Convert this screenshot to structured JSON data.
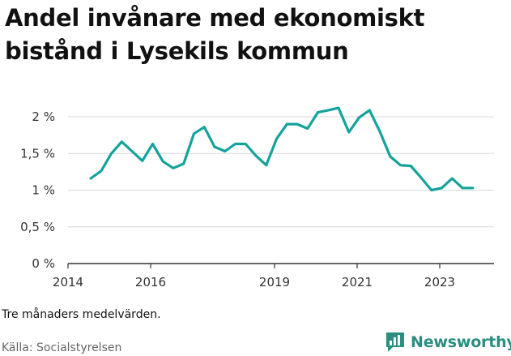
{
  "title": "Andel invånare med ekonomiskt bistånd i Lysekils kommun",
  "note": "Tre månaders medelvärden.",
  "source": "Källa: Socialstyrelsen",
  "brand": "Newsworthy",
  "colors": {
    "line": "#14a39b",
    "brand": "#2a8e80",
    "grid": "#d9d9d9",
    "axis": "#333333"
  },
  "chart_data": {
    "type": "line",
    "title": "Andel invånare med ekonomiskt bistånd i Lysekils kommun",
    "xlabel": "",
    "ylabel": "",
    "xlim": [
      2014.0,
      2025.2
    ],
    "ylim": [
      0,
      2.2
    ],
    "x_ticks": [
      {
        "value": 2014,
        "label": "2014"
      },
      {
        "value": 2016,
        "label": "2016"
      },
      {
        "value": 2019,
        "label": "2019"
      },
      {
        "value": 2021,
        "label": "2021"
      },
      {
        "value": 2023,
        "label": "2023"
      }
    ],
    "y_ticks": [
      {
        "value": 0,
        "label": "0 %"
      },
      {
        "value": 0.5,
        "label": "0,5 %"
      },
      {
        "value": 1,
        "label": "1 %"
      },
      {
        "value": 1.5,
        "label": "1,5 %"
      },
      {
        "value": 2,
        "label": "2 %"
      }
    ],
    "grid": "horizontal",
    "series": [
      {
        "x": [
          2014.55,
          2014.8,
          2015.05,
          2015.3,
          2015.55,
          2015.8,
          2016.05,
          2016.3,
          2016.55,
          2016.8,
          2017.05,
          2017.3,
          2017.55,
          2017.8,
          2018.05,
          2018.3,
          2018.55,
          2018.8,
          2019.05,
          2019.3,
          2019.55,
          2019.8,
          2020.05,
          2020.3,
          2020.55,
          2020.8,
          2021.05,
          2021.3,
          2021.55,
          2021.8,
          2022.05,
          2022.3,
          2022.55,
          2022.8,
          2023.05,
          2023.3,
          2023.55,
          2023.8
        ],
        "values": [
          1.16,
          1.26,
          1.5,
          1.66,
          1.53,
          1.4,
          1.63,
          1.39,
          1.3,
          1.36,
          1.77,
          1.86,
          1.59,
          1.53,
          1.63,
          1.63,
          1.47,
          1.34,
          1.7,
          1.9,
          1.9,
          1.84,
          2.06,
          2.09,
          2.12,
          1.79,
          1.99,
          2.09,
          1.8,
          1.46,
          1.34,
          1.33,
          1.17,
          1.0,
          1.03,
          1.16,
          1.03,
          1.03
        ]
      }
    ]
  }
}
